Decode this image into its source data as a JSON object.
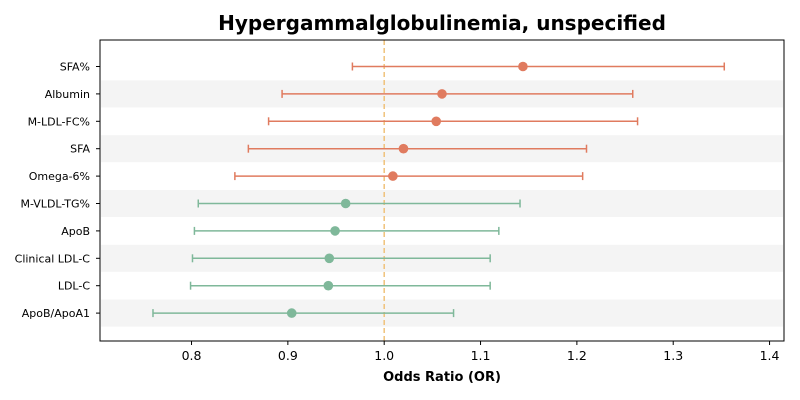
{
  "chart_data": {
    "type": "forest",
    "title": "Hypergammalglobulinemia, unspecified",
    "xlabel": "Odds Ratio (OR)",
    "xlim": [
      0.705,
      1.415
    ],
    "xticks": [
      "0.8",
      "0.9",
      "1.0",
      "1.1",
      "1.2",
      "1.3",
      "1.4"
    ],
    "reference_line": 1.0,
    "colors": {
      "positive": "#e07b5f",
      "negative": "#7fb89a",
      "reference": "#f0c27a",
      "band": "#f4f4f4"
    },
    "rows": [
      {
        "label": "SFA%",
        "or": 1.144,
        "lower": 0.967,
        "upper": 1.353,
        "group": "positive"
      },
      {
        "label": "Albumin",
        "or": 1.06,
        "lower": 0.894,
        "upper": 1.258,
        "group": "positive"
      },
      {
        "label": "M-LDL-FC%",
        "or": 1.054,
        "lower": 0.88,
        "upper": 1.263,
        "group": "positive"
      },
      {
        "label": "SFA",
        "or": 1.02,
        "lower": 0.859,
        "upper": 1.21,
        "group": "positive"
      },
      {
        "label": "Omega-6%",
        "or": 1.009,
        "lower": 0.845,
        "upper": 1.206,
        "group": "positive"
      },
      {
        "label": "M-VLDL-TG%",
        "or": 0.96,
        "lower": 0.807,
        "upper": 1.141,
        "group": "negative"
      },
      {
        "label": "ApoB",
        "or": 0.949,
        "lower": 0.803,
        "upper": 1.119,
        "group": "negative"
      },
      {
        "label": "Clinical LDL-C",
        "or": 0.943,
        "lower": 0.801,
        "upper": 1.11,
        "group": "negative"
      },
      {
        "label": "LDL-C",
        "or": 0.942,
        "lower": 0.799,
        "upper": 1.11,
        "group": "negative"
      },
      {
        "label": "ApoB/ApoA1",
        "or": 0.904,
        "lower": 0.76,
        "upper": 1.072,
        "group": "negative"
      }
    ]
  }
}
